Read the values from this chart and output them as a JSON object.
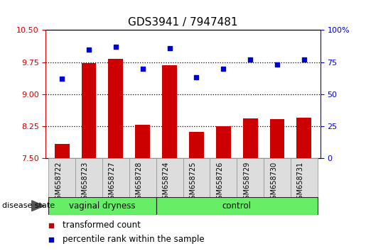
{
  "title": "GDS3941 / 7947481",
  "samples": [
    "GSM658722",
    "GSM658723",
    "GSM658727",
    "GSM658728",
    "GSM658724",
    "GSM658725",
    "GSM658726",
    "GSM658729",
    "GSM658730",
    "GSM658731"
  ],
  "bar_values": [
    7.83,
    9.72,
    9.82,
    8.28,
    9.68,
    8.12,
    8.25,
    8.43,
    8.42,
    8.45
  ],
  "dot_values": [
    62,
    85,
    87,
    70,
    86,
    63,
    70,
    77,
    73,
    77
  ],
  "bar_color": "#cc0000",
  "dot_color": "#0000cc",
  "ylim_left": [
    7.5,
    10.5
  ],
  "ylim_right": [
    0,
    100
  ],
  "yticks_left": [
    7.5,
    8.25,
    9.0,
    9.75,
    10.5
  ],
  "yticks_right": [
    0,
    25,
    50,
    75,
    100
  ],
  "hlines": [
    8.25,
    9.0,
    9.75
  ],
  "groups": [
    {
      "label": "vaginal dryness",
      "start": 0,
      "end": 3
    },
    {
      "label": "control",
      "start": 4,
      "end": 9
    }
  ],
  "group_color": "#66ee66",
  "disease_state_label": "disease state",
  "legend_bar_label": "transformed count",
  "legend_dot_label": "percentile rank within the sample",
  "bar_baseline": 7.5,
  "title_fontsize": 11,
  "tick_fontsize": 8,
  "label_fontsize": 8.5
}
